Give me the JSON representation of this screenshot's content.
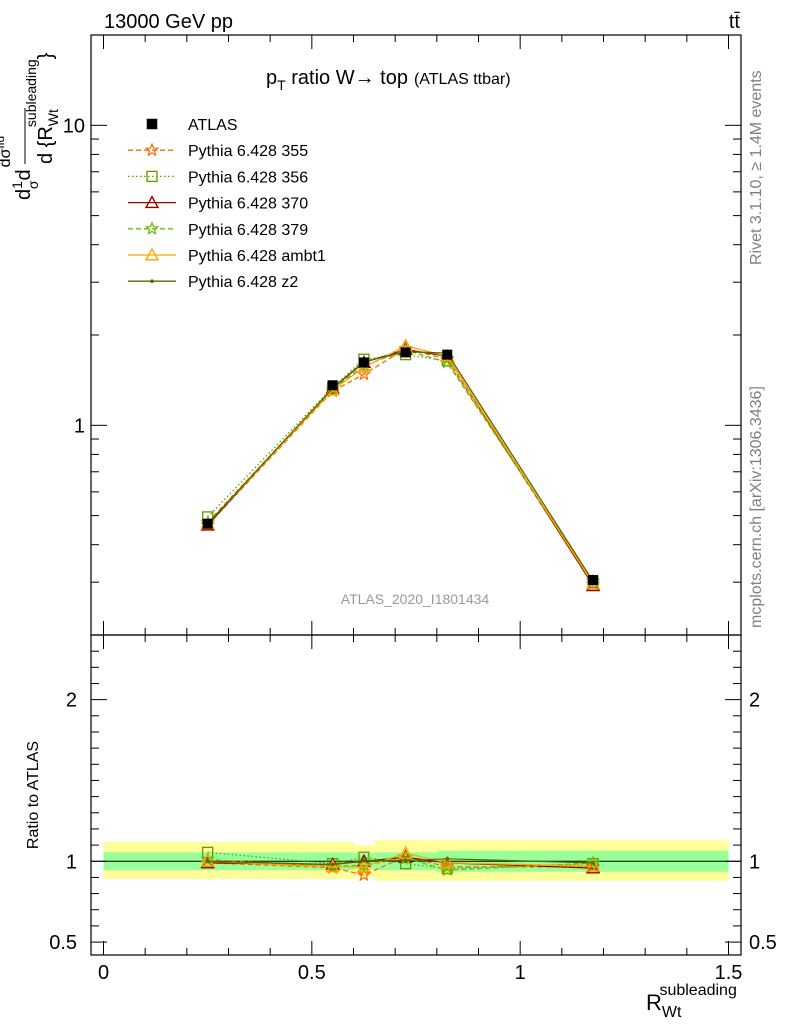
{
  "header": {
    "left": "13000 GeV pp",
    "right": "tt̄"
  },
  "side": {
    "rivet": "Rivet 3.1.10, ≥ 1.4M events",
    "mcplots": "mcplots.cern.ch [arXiv:1306.3436]"
  },
  "chart_data": [
    {
      "type": "line",
      "title_main": "p",
      "title_sub": "T",
      "title_rest": " ratio W→ top",
      "title_suffix": "(ATLAS ttbar)",
      "analysis_label": "ATLAS_2020_I1801434",
      "yscale": "log",
      "xlim": [
        -0.03,
        1.53
      ],
      "ylim": [
        0.2,
        20
      ],
      "ytick_values": [
        1,
        10
      ],
      "ytick_labels": [
        "1",
        "10"
      ],
      "ylabel": "d{1}{σ}d dσ^{fid} / d{R_{Wt}^{subleading}}",
      "legend_position": "top-left",
      "x": [
        0.25,
        0.55,
        0.625,
        0.725,
        0.825,
        1.175
      ],
      "series": [
        {
          "name": "ATLAS",
          "color": "#000000",
          "marker": "square",
          "dash": "none",
          "values": [
            0.47,
            1.36,
            1.62,
            1.75,
            1.72,
            0.305
          ],
          "errors": [
            0.015,
            0.03,
            0.04,
            0.04,
            0.05,
            0.01
          ]
        },
        {
          "name": "Pythia 6.428 355",
          "color": "#ff6600",
          "marker": "star",
          "dash": "5,3",
          "values": [
            0.465,
            1.3,
            1.48,
            1.8,
            1.66,
            0.295
          ]
        },
        {
          "name": "Pythia 6.428 356",
          "color": "#669900",
          "marker": "open-square",
          "dash": "1.5,2.5",
          "values": [
            0.495,
            1.34,
            1.66,
            1.72,
            1.64,
            0.3
          ]
        },
        {
          "name": "Pythia 6.428 370",
          "color": "#990000",
          "marker": "open-triangle",
          "dash": "none",
          "values": [
            0.465,
            1.33,
            1.62,
            1.79,
            1.7,
            0.292
          ]
        },
        {
          "name": "Pythia 6.428 379",
          "color": "#66bb00",
          "marker": "star",
          "dash": "5,3",
          "values": [
            0.475,
            1.32,
            1.58,
            1.78,
            1.62,
            0.302
          ]
        },
        {
          "name": "Pythia 6.428 ambt1",
          "color": "#ffa500",
          "marker": "open-triangle",
          "dash": "none",
          "values": [
            0.47,
            1.31,
            1.56,
            1.84,
            1.7,
            0.296
          ]
        },
        {
          "name": "Pythia 6.428 z2",
          "color": "#556b00",
          "marker": "dot",
          "dash": "none",
          "values": [
            0.47,
            1.33,
            1.63,
            1.76,
            1.74,
            0.302
          ]
        }
      ]
    },
    {
      "type": "line",
      "ylabel": "Ratio to ATLAS",
      "xlabel_main": "R",
      "xlabel_sub": "Wt",
      "xlabel_sup": "subleading",
      "xlim": [
        -0.03,
        1.53
      ],
      "ylim": [
        0.42,
        2.4
      ],
      "xtick_labels": [
        "0",
        "0.5",
        "1",
        "1.5"
      ],
      "xtick_values": [
        0,
        0.5,
        1,
        1.5
      ],
      "ytick_labels": [
        "0.5",
        "1",
        "2"
      ],
      "ytick_values": [
        0.5,
        1,
        2
      ],
      "bands": {
        "edges": [
          0,
          0.5,
          0.6,
          0.65,
          0.8,
          1.5
        ],
        "inner": [
          [
            0.945,
            1.055
          ],
          [
            0.945,
            1.055
          ],
          [
            0.95,
            1.05
          ],
          [
            0.945,
            1.055
          ],
          [
            0.935,
            1.065
          ]
        ],
        "outer": [
          [
            0.89,
            1.12
          ],
          [
            0.89,
            1.12
          ],
          [
            0.9,
            1.1
          ],
          [
            0.88,
            1.13
          ],
          [
            0.88,
            1.13
          ]
        ],
        "inner_color": "#99ff99",
        "outer_color": "#ffff99"
      },
      "x": [
        0.25,
        0.55,
        0.625,
        0.725,
        0.825,
        1.175
      ],
      "series": [
        {
          "name": "Pythia 6.428 355",
          "values": [
            0.99,
            0.96,
            0.915,
            1.03,
            0.965,
            0.965
          ]
        },
        {
          "name": "Pythia 6.428 356",
          "values": [
            1.055,
            0.985,
            1.025,
            0.985,
            0.955,
            0.985
          ]
        },
        {
          "name": "Pythia 6.428 370",
          "values": [
            0.99,
            0.98,
            1.0,
            1.025,
            0.99,
            0.958
          ]
        },
        {
          "name": "Pythia 6.428 379",
          "values": [
            1.01,
            0.97,
            0.975,
            1.02,
            0.945,
            0.99
          ]
        },
        {
          "name": "Pythia 6.428 ambt1",
          "values": [
            1.0,
            0.965,
            0.965,
            1.05,
            0.99,
            0.97
          ]
        },
        {
          "name": "Pythia 6.428 z2",
          "values": [
            1.0,
            0.98,
            1.005,
            1.005,
            1.015,
            0.99
          ]
        }
      ]
    }
  ]
}
